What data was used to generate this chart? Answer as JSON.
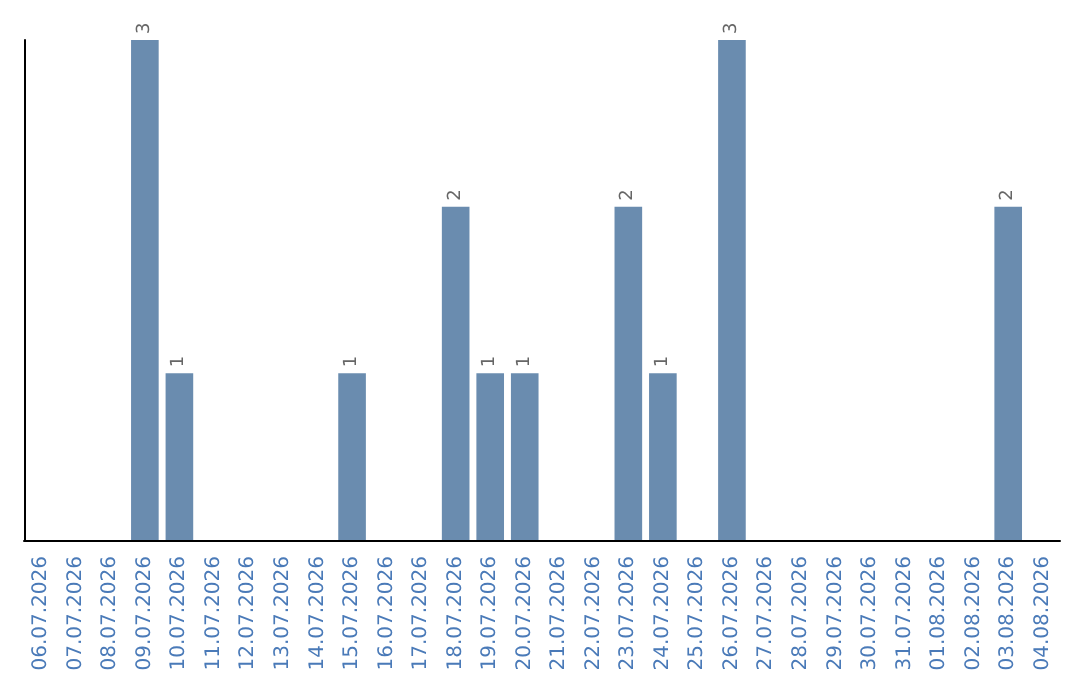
{
  "chart_data": {
    "type": "bar",
    "categories": [
      "06.07.2026",
      "07.07.2026",
      "08.07.2026",
      "09.07.2026",
      "10.07.2026",
      "11.07.2026",
      "12.07.2026",
      "13.07.2026",
      "14.07.2026",
      "15.07.2026",
      "16.07.2026",
      "17.07.2026",
      "18.07.2026",
      "19.07.2026",
      "20.07.2026",
      "21.07.2026",
      "22.07.2026",
      "23.07.2026",
      "24.07.2026",
      "25.07.2026",
      "26.07.2026",
      "27.07.2026",
      "28.07.2026",
      "29.07.2026",
      "30.07.2026",
      "31.07.2026",
      "01.08.2026",
      "02.08.2026",
      "03.08.2026",
      "04.08.2026"
    ],
    "values": [
      0,
      0,
      0,
      3,
      1,
      0,
      0,
      0,
      0,
      1,
      0,
      0,
      2,
      1,
      1,
      0,
      0,
      2,
      1,
      0,
      3,
      0,
      0,
      0,
      0,
      0,
      0,
      0,
      2,
      0
    ],
    "value_labels": [
      null,
      null,
      null,
      "3",
      "1",
      null,
      null,
      null,
      null,
      "1",
      null,
      null,
      "2",
      "1",
      "1",
      null,
      null,
      "2",
      "1",
      null,
      "3",
      null,
      null,
      null,
      null,
      null,
      null,
      null,
      "2",
      null
    ],
    "color": "#6a8caf",
    "tick_labels": "x"
  }
}
